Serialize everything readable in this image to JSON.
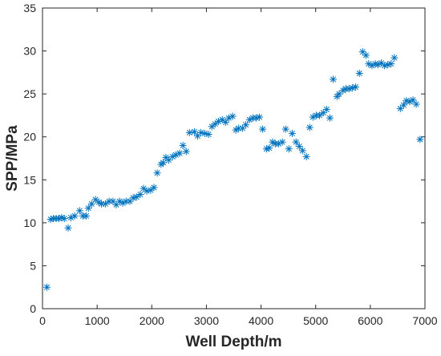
{
  "chart_data": {
    "type": "scatter",
    "title": "",
    "xlabel": "Well Depth/m",
    "ylabel": "SPP/MPa",
    "xlim": [
      0,
      7000
    ],
    "ylim": [
      0,
      35
    ],
    "xticks": [
      0,
      1000,
      2000,
      3000,
      4000,
      5000,
      6000,
      7000
    ],
    "yticks": [
      0,
      5,
      10,
      15,
      20,
      25,
      30,
      35
    ],
    "grid": false,
    "marker": "asterisk",
    "color": "#0072BD",
    "series": [
      {
        "x": [
          80,
          150,
          200,
          250,
          300,
          350,
          400,
          470,
          520,
          590,
          680,
          740,
          800,
          840,
          900,
          970,
          1030,
          1080,
          1150,
          1220,
          1290,
          1350,
          1410,
          1470,
          1530,
          1600,
          1660,
          1720,
          1790,
          1850,
          1910,
          1980,
          2040,
          2100,
          2170,
          2210,
          2260,
          2310,
          2380,
          2440,
          2510,
          2570,
          2630,
          2690,
          2780,
          2840,
          2900,
          2970,
          3040,
          3100,
          3160,
          3220,
          3290,
          3350,
          3410,
          3480,
          3540,
          3590,
          3660,
          3720,
          3790,
          3850,
          3910,
          3970,
          4030,
          4100,
          4150,
          4210,
          4260,
          4320,
          4390,
          4450,
          4510,
          4570,
          4640,
          4700,
          4760,
          4830,
          4890,
          4950,
          5010,
          5070,
          5140,
          5200,
          5260,
          5320,
          5390,
          5430,
          5500,
          5550,
          5610,
          5670,
          5730,
          5800,
          5860,
          5920,
          5970,
          6030,
          6090,
          6140,
          6200,
          6260,
          6320,
          6380,
          6440,
          6550,
          6610,
          6660,
          6720,
          6780,
          6840,
          6910
        ],
        "y": [
          2.5,
          10.4,
          10.5,
          10.5,
          10.5,
          10.6,
          10.5,
          9.4,
          10.6,
          10.8,
          11.4,
          10.8,
          10.8,
          11.7,
          12.2,
          12.7,
          12.4,
          12.2,
          12.2,
          12.5,
          12.5,
          12.1,
          12.5,
          12.3,
          12.5,
          12.5,
          12.9,
          13.0,
          13.3,
          14.0,
          13.7,
          13.8,
          14.1,
          15.8,
          16.8,
          17.0,
          17.6,
          17.3,
          17.7,
          17.9,
          18.1,
          19.0,
          18.3,
          20.5,
          20.6,
          20.1,
          20.5,
          20.4,
          20.3,
          21.2,
          21.5,
          21.8,
          22.0,
          21.7,
          22.2,
          22.4,
          20.8,
          21.0,
          21.0,
          21.4,
          22.0,
          22.2,
          22.2,
          22.3,
          20.9,
          18.6,
          18.7,
          19.4,
          19.2,
          19.2,
          19.4,
          20.9,
          18.6,
          20.4,
          19.4,
          18.9,
          18.4,
          17.7,
          21.1,
          22.3,
          22.5,
          22.5,
          22.8,
          23.2,
          22.2,
          26.7,
          24.7,
          25.0,
          25.4,
          25.6,
          25.6,
          25.7,
          25.8,
          27.4,
          29.9,
          29.5,
          28.5,
          28.3,
          28.5,
          28.4,
          28.6,
          28.3,
          28.4,
          28.5,
          29.2,
          23.3,
          23.7,
          24.2,
          24.1,
          24.3,
          23.8,
          19.7
        ]
      }
    ]
  }
}
